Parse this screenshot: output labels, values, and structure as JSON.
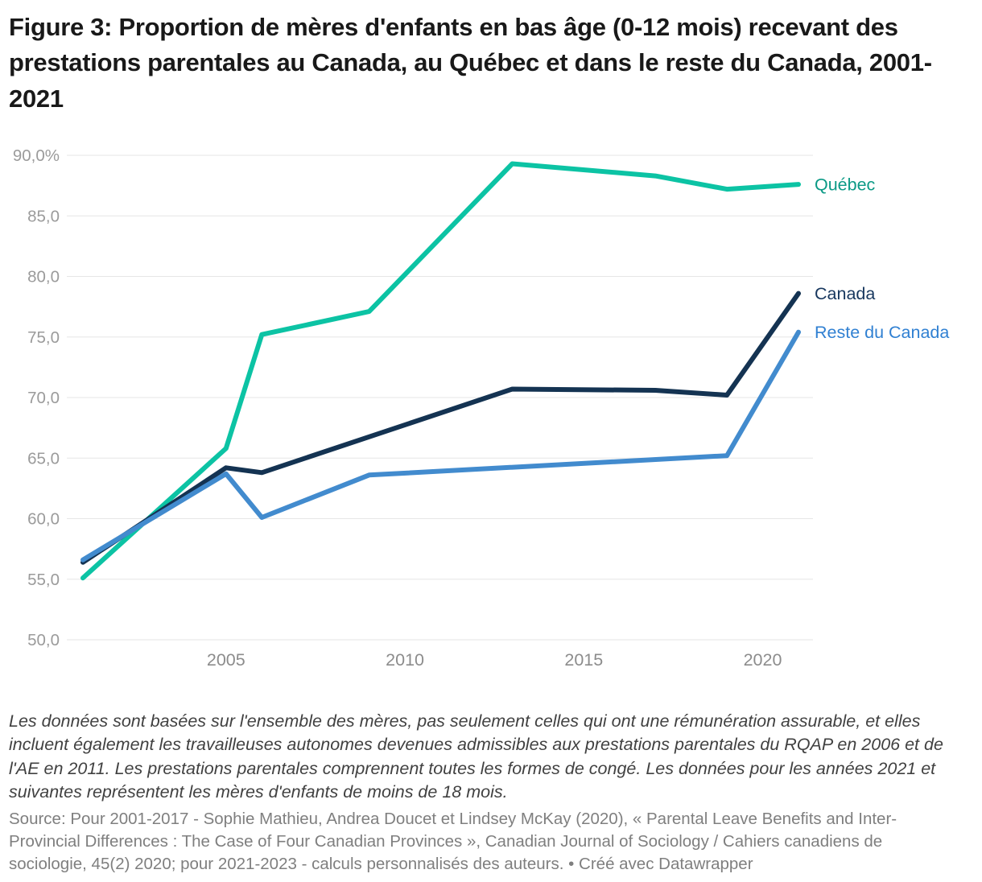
{
  "title": "Figure 3: Proportion de mères d'enfants en bas âge (0-12 mois) recevant des prestations parentales au Canada, au Québec et dans le reste du Canada, 2001-2021",
  "notes": "Les données sont basées sur l'ensemble des mères, pas seulement celles qui ont une rémunération assurable, et elles incluent également les travailleuses autonomes devenues admissibles aux prestations parentales du RQAP en 2006 et de l'AE en 2011. Les prestations parentales comprennent toutes les formes de congé. Les données pour les années 2021 et suivantes représentent les mères d'enfants de moins de 18 mois.",
  "source": {
    "text": "Source: Pour 2001-2017 - Sophie Mathieu, Andrea Doucet et Lindsey McKay (2020), « Parental Leave Benefits and Inter-Provincial Differences : The Case of Four Canadian Provinces », Canadian Journal of Sociology / Cahiers canadiens de sociologie, 45(2) 2020; pour 2021-2023 - calculs personnalisés des auteurs.",
    "separator": " • ",
    "attribution": "Créé avec Datawrapper"
  },
  "chart_data": {
    "type": "line",
    "title": "Proportion de mères d'enfants en bas âge (0-12 mois) recevant des prestations parentales, 2001-2021",
    "xlabel": "",
    "ylabel": "",
    "unit": "%",
    "x_range": [
      2001,
      2021
    ],
    "y_range": [
      50,
      90
    ],
    "x_tick_values": [
      2005,
      2010,
      2015,
      2020
    ],
    "x_tick_labels": [
      "2005",
      "2010",
      "2015",
      "2020"
    ],
    "y_tick_values": [
      90,
      85,
      80,
      75,
      70,
      65,
      60,
      55,
      50
    ],
    "y_tick_labels": [
      "90,0%",
      "85,0",
      "80,0",
      "75,0",
      "70,0",
      "65,0",
      "60,0",
      "55,0",
      "50,0"
    ],
    "grid": "horizontal",
    "grid_color": "#e6e6e6",
    "y_tick_label_color": "#9b9b9b",
    "x_tick_label_color": "#8c8c8c",
    "legend_position": "right-end-of-line-labels",
    "series": [
      {
        "name": "Québec",
        "color": "#0cc3a4",
        "label_color": "#0c9a86",
        "points": [
          [
            2001,
            55.1
          ],
          [
            2005,
            65.8
          ],
          [
            2006,
            75.2
          ],
          [
            2009,
            77.1
          ],
          [
            2013,
            89.3
          ],
          [
            2017,
            88.3
          ],
          [
            2019,
            87.2
          ],
          [
            2021,
            87.6
          ]
        ]
      },
      {
        "name": "Canada",
        "color": "#143352",
        "label_color": "#17375e",
        "points": [
          [
            2001,
            56.4
          ],
          [
            2005,
            64.2
          ],
          [
            2006,
            63.8
          ],
          [
            2013,
            70.7
          ],
          [
            2017,
            70.6
          ],
          [
            2019,
            70.2
          ],
          [
            2021,
            78.6
          ]
        ]
      },
      {
        "name": "Reste du Canada",
        "color": "#428bce",
        "label_color": "#3080d2",
        "points": [
          [
            2001,
            56.6
          ],
          [
            2005,
            63.7
          ],
          [
            2006,
            60.1
          ],
          [
            2009,
            63.6
          ],
          [
            2019,
            65.2
          ],
          [
            2021,
            75.4
          ]
        ]
      }
    ]
  }
}
